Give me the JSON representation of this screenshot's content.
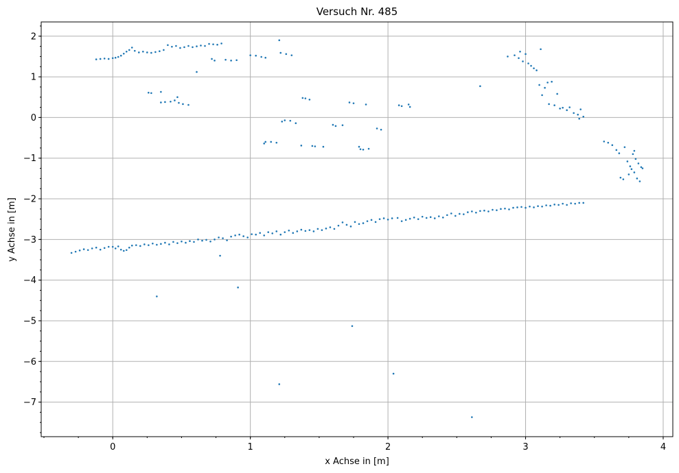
{
  "chart_data": {
    "type": "scatter",
    "title": "Versuch Nr. 485",
    "xlabel": "x Achse in [m]",
    "ylabel": "y Achse in [m]",
    "xlim": [
      -0.52,
      4.07
    ],
    "ylim": [
      -7.85,
      2.35
    ],
    "xticks": [
      0,
      1,
      2,
      3,
      4
    ],
    "yticks": [
      -7,
      -6,
      -5,
      -4,
      -3,
      -2,
      -1,
      0,
      1,
      2
    ],
    "xtick_labels": [
      "0",
      "1",
      "2",
      "3",
      "4"
    ],
    "ytick_labels": [
      "−7",
      "−6",
      "−5",
      "−4",
      "−3",
      "−2",
      "−1",
      "0",
      "1",
      "2"
    ],
    "grid": true,
    "minor_ticks": true,
    "marker_color": "#1f77b4",
    "series": [
      {
        "points": [
          [
            -0.3,
            -3.33
          ],
          [
            -0.27,
            -3.3
          ],
          [
            -0.24,
            -3.27
          ],
          [
            -0.21,
            -3.24
          ],
          [
            -0.18,
            -3.26
          ],
          [
            -0.15,
            -3.22
          ],
          [
            -0.12,
            -3.2
          ],
          [
            -0.09,
            -3.25
          ],
          [
            -0.06,
            -3.21
          ],
          [
            -0.03,
            -3.18
          ],
          [
            0.0,
            -3.18
          ],
          [
            0.02,
            -3.22
          ],
          [
            0.04,
            -3.17
          ],
          [
            0.06,
            -3.25
          ],
          [
            0.08,
            -3.28
          ],
          [
            0.1,
            -3.26
          ],
          [
            0.12,
            -3.2
          ],
          [
            0.14,
            -3.15
          ],
          [
            0.17,
            -3.14
          ],
          [
            0.2,
            -3.16
          ],
          [
            0.23,
            -3.12
          ],
          [
            0.26,
            -3.14
          ],
          [
            0.29,
            -3.1
          ],
          [
            0.32,
            -3.13
          ],
          [
            0.35,
            -3.11
          ],
          [
            0.38,
            -3.08
          ],
          [
            0.41,
            -3.12
          ],
          [
            0.44,
            -3.06
          ],
          [
            0.47,
            -3.09
          ],
          [
            0.5,
            -3.05
          ],
          [
            0.53,
            -3.08
          ],
          [
            0.56,
            -3.04
          ],
          [
            0.59,
            -3.06
          ],
          [
            0.62,
            -3.0
          ],
          [
            0.65,
            -3.03
          ],
          [
            0.68,
            -3.01
          ],
          [
            0.71,
            -3.05
          ],
          [
            0.74,
            -3.0
          ],
          [
            0.77,
            -2.95
          ],
          [
            0.8,
            -2.97
          ],
          [
            0.83,
            -3.02
          ],
          [
            0.86,
            -2.93
          ],
          [
            0.89,
            -2.9
          ],
          [
            0.92,
            -2.88
          ],
          [
            0.95,
            -2.92
          ],
          [
            0.98,
            -2.95
          ],
          [
            1.01,
            -2.87
          ],
          [
            1.04,
            -2.88
          ],
          [
            1.07,
            -2.84
          ],
          [
            1.1,
            -2.9
          ],
          [
            1.13,
            -2.82
          ],
          [
            1.16,
            -2.85
          ],
          [
            1.19,
            -2.8
          ],
          [
            1.22,
            -2.88
          ],
          [
            1.25,
            -2.82
          ],
          [
            1.28,
            -2.78
          ],
          [
            1.31,
            -2.84
          ],
          [
            1.34,
            -2.8
          ],
          [
            1.37,
            -2.76
          ],
          [
            1.4,
            -2.79
          ],
          [
            1.43,
            -2.77
          ],
          [
            1.46,
            -2.8
          ],
          [
            1.49,
            -2.74
          ],
          [
            1.52,
            -2.77
          ],
          [
            1.55,
            -2.73
          ],
          [
            1.58,
            -2.7
          ],
          [
            1.61,
            -2.74
          ],
          [
            1.64,
            -2.66
          ],
          [
            1.67,
            -2.58
          ],
          [
            1.7,
            -2.64
          ],
          [
            1.73,
            -2.68
          ],
          [
            1.76,
            -2.57
          ],
          [
            1.79,
            -2.62
          ],
          [
            1.82,
            -2.6
          ],
          [
            1.85,
            -2.55
          ],
          [
            1.88,
            -2.52
          ],
          [
            1.91,
            -2.57
          ],
          [
            1.94,
            -2.5
          ],
          [
            1.97,
            -2.48
          ],
          [
            2.0,
            -2.51
          ],
          [
            2.03,
            -2.48
          ],
          [
            2.07,
            -2.47
          ],
          [
            2.1,
            -2.55
          ],
          [
            2.13,
            -2.52
          ],
          [
            2.16,
            -2.49
          ],
          [
            2.19,
            -2.46
          ],
          [
            2.22,
            -2.5
          ],
          [
            2.25,
            -2.44
          ],
          [
            2.28,
            -2.47
          ],
          [
            2.31,
            -2.45
          ],
          [
            2.34,
            -2.48
          ],
          [
            2.37,
            -2.43
          ],
          [
            2.4,
            -2.46
          ],
          [
            2.43,
            -2.4
          ],
          [
            2.46,
            -2.36
          ],
          [
            2.49,
            -2.42
          ],
          [
            2.52,
            -2.37
          ],
          [
            2.55,
            -2.38
          ],
          [
            2.58,
            -2.33
          ],
          [
            2.61,
            -2.31
          ],
          [
            2.64,
            -2.34
          ],
          [
            2.67,
            -2.3
          ],
          [
            2.7,
            -2.29
          ],
          [
            2.73,
            -2.31
          ],
          [
            2.76,
            -2.27
          ],
          [
            2.79,
            -2.28
          ],
          [
            2.82,
            -2.25
          ],
          [
            2.85,
            -2.24
          ],
          [
            2.88,
            -2.26
          ],
          [
            2.91,
            -2.22
          ],
          [
            2.94,
            -2.21
          ],
          [
            2.97,
            -2.2
          ],
          [
            3.0,
            -2.22
          ],
          [
            3.03,
            -2.19
          ],
          [
            3.06,
            -2.21
          ],
          [
            3.09,
            -2.18
          ],
          [
            3.12,
            -2.19
          ],
          [
            3.15,
            -2.16
          ],
          [
            3.18,
            -2.17
          ],
          [
            3.21,
            -2.14
          ],
          [
            3.24,
            -2.15
          ],
          [
            3.27,
            -2.12
          ],
          [
            3.3,
            -2.15
          ],
          [
            3.33,
            -2.11
          ],
          [
            3.36,
            -2.12
          ],
          [
            3.39,
            -2.1
          ],
          [
            3.42,
            -2.1
          ],
          [
            -0.12,
            1.43
          ],
          [
            -0.09,
            1.44
          ],
          [
            -0.06,
            1.45
          ],
          [
            -0.03,
            1.44
          ],
          [
            0.0,
            1.46
          ],
          [
            0.02,
            1.47
          ],
          [
            0.04,
            1.49
          ],
          [
            0.06,
            1.52
          ],
          [
            0.08,
            1.57
          ],
          [
            0.1,
            1.62
          ],
          [
            0.12,
            1.66
          ],
          [
            0.14,
            1.72
          ],
          [
            0.16,
            1.64
          ],
          [
            0.19,
            1.6
          ],
          [
            0.22,
            1.62
          ],
          [
            0.25,
            1.6
          ],
          [
            0.28,
            1.59
          ],
          [
            0.31,
            1.61
          ],
          [
            0.34,
            1.63
          ],
          [
            0.37,
            1.66
          ],
          [
            0.4,
            1.78
          ],
          [
            0.43,
            1.74
          ],
          [
            0.46,
            1.76
          ],
          [
            0.49,
            1.71
          ],
          [
            0.52,
            1.73
          ],
          [
            0.55,
            1.76
          ],
          [
            0.58,
            1.73
          ],
          [
            0.61,
            1.75
          ],
          [
            0.64,
            1.77
          ],
          [
            0.67,
            1.76
          ],
          [
            0.7,
            1.81
          ],
          [
            0.73,
            1.8
          ],
          [
            0.76,
            1.79
          ],
          [
            0.79,
            1.82
          ],
          [
            0.61,
            1.12
          ],
          [
            0.72,
            1.44
          ],
          [
            0.74,
            1.4
          ],
          [
            0.82,
            1.42
          ],
          [
            0.86,
            1.4
          ],
          [
            0.9,
            1.41
          ],
          [
            1.0,
            1.53
          ],
          [
            1.04,
            1.52
          ],
          [
            1.08,
            1.49
          ],
          [
            1.11,
            1.47
          ],
          [
            1.21,
            1.9
          ],
          [
            1.22,
            1.59
          ],
          [
            1.26,
            1.56
          ],
          [
            1.3,
            1.53
          ],
          [
            0.26,
            0.61
          ],
          [
            0.28,
            0.6
          ],
          [
            0.35,
            0.63
          ],
          [
            0.35,
            0.37
          ],
          [
            0.38,
            0.38
          ],
          [
            0.42,
            0.39
          ],
          [
            0.45,
            0.42
          ],
          [
            0.47,
            0.5
          ],
          [
            0.48,
            0.36
          ],
          [
            0.51,
            0.33
          ],
          [
            0.55,
            0.31
          ],
          [
            1.11,
            -0.6
          ],
          [
            1.15,
            -0.6
          ],
          [
            1.19,
            -0.62
          ],
          [
            1.1,
            -0.64
          ],
          [
            1.23,
            -0.1
          ],
          [
            1.25,
            -0.07
          ],
          [
            1.29,
            -0.08
          ],
          [
            1.33,
            -0.14
          ],
          [
            1.37,
            -0.69
          ],
          [
            1.38,
            0.48
          ],
          [
            1.4,
            0.47
          ],
          [
            1.43,
            0.44
          ],
          [
            1.45,
            -0.7
          ],
          [
            1.47,
            -0.71
          ],
          [
            1.53,
            -0.72
          ],
          [
            1.6,
            -0.18
          ],
          [
            1.62,
            -0.21
          ],
          [
            1.67,
            -0.19
          ],
          [
            1.72,
            0.37
          ],
          [
            1.75,
            0.35
          ],
          [
            1.79,
            -0.72
          ],
          [
            1.8,
            -0.78
          ],
          [
            1.82,
            -0.79
          ],
          [
            1.84,
            0.32
          ],
          [
            1.86,
            -0.77
          ],
          [
            1.92,
            -0.27
          ],
          [
            1.95,
            -0.3
          ],
          [
            2.08,
            0.3
          ],
          [
            2.1,
            0.28
          ],
          [
            2.15,
            0.32
          ],
          [
            2.16,
            0.26
          ],
          [
            2.67,
            0.77
          ],
          [
            2.87,
            1.5
          ],
          [
            2.92,
            1.53
          ],
          [
            2.95,
            1.46
          ],
          [
            2.96,
            1.62
          ],
          [
            2.98,
            1.38
          ],
          [
            3.0,
            1.56
          ],
          [
            3.02,
            1.33
          ],
          [
            3.04,
            1.27
          ],
          [
            3.06,
            1.21
          ],
          [
            3.08,
            1.16
          ],
          [
            3.1,
            0.8
          ],
          [
            3.11,
            1.68
          ],
          [
            3.12,
            0.55
          ],
          [
            3.14,
            0.73
          ],
          [
            3.16,
            0.86
          ],
          [
            3.17,
            0.33
          ],
          [
            3.19,
            0.88
          ],
          [
            3.21,
            0.3
          ],
          [
            3.23,
            0.58
          ],
          [
            3.25,
            0.22
          ],
          [
            3.27,
            0.24
          ],
          [
            3.3,
            0.18
          ],
          [
            3.32,
            0.25
          ],
          [
            3.35,
            0.11
          ],
          [
            3.38,
            0.07
          ],
          [
            3.39,
            -0.03
          ],
          [
            3.4,
            0.2
          ],
          [
            3.42,
            0.02
          ],
          [
            3.57,
            -0.59
          ],
          [
            3.6,
            -0.62
          ],
          [
            3.63,
            -0.68
          ],
          [
            3.66,
            -0.8
          ],
          [
            3.68,
            -0.88
          ],
          [
            3.69,
            -1.48
          ],
          [
            3.71,
            -1.52
          ],
          [
            3.72,
            -0.73
          ],
          [
            3.74,
            -1.08
          ],
          [
            3.75,
            -1.4
          ],
          [
            3.76,
            -1.2
          ],
          [
            3.77,
            -1.27
          ],
          [
            3.78,
            -0.9
          ],
          [
            3.79,
            -0.82
          ],
          [
            3.8,
            -1.02
          ],
          [
            3.81,
            -1.5
          ],
          [
            3.82,
            -1.13
          ],
          [
            3.83,
            -1.57
          ],
          [
            3.84,
            -1.22
          ],
          [
            3.85,
            -1.25
          ],
          [
            3.79,
            -1.35
          ],
          [
            0.32,
            -4.4
          ],
          [
            0.78,
            -3.4
          ],
          [
            0.91,
            -4.18
          ],
          [
            1.74,
            -5.13
          ],
          [
            2.04,
            -6.3
          ],
          [
            1.21,
            -6.56
          ],
          [
            2.61,
            -7.37
          ]
        ]
      }
    ]
  }
}
